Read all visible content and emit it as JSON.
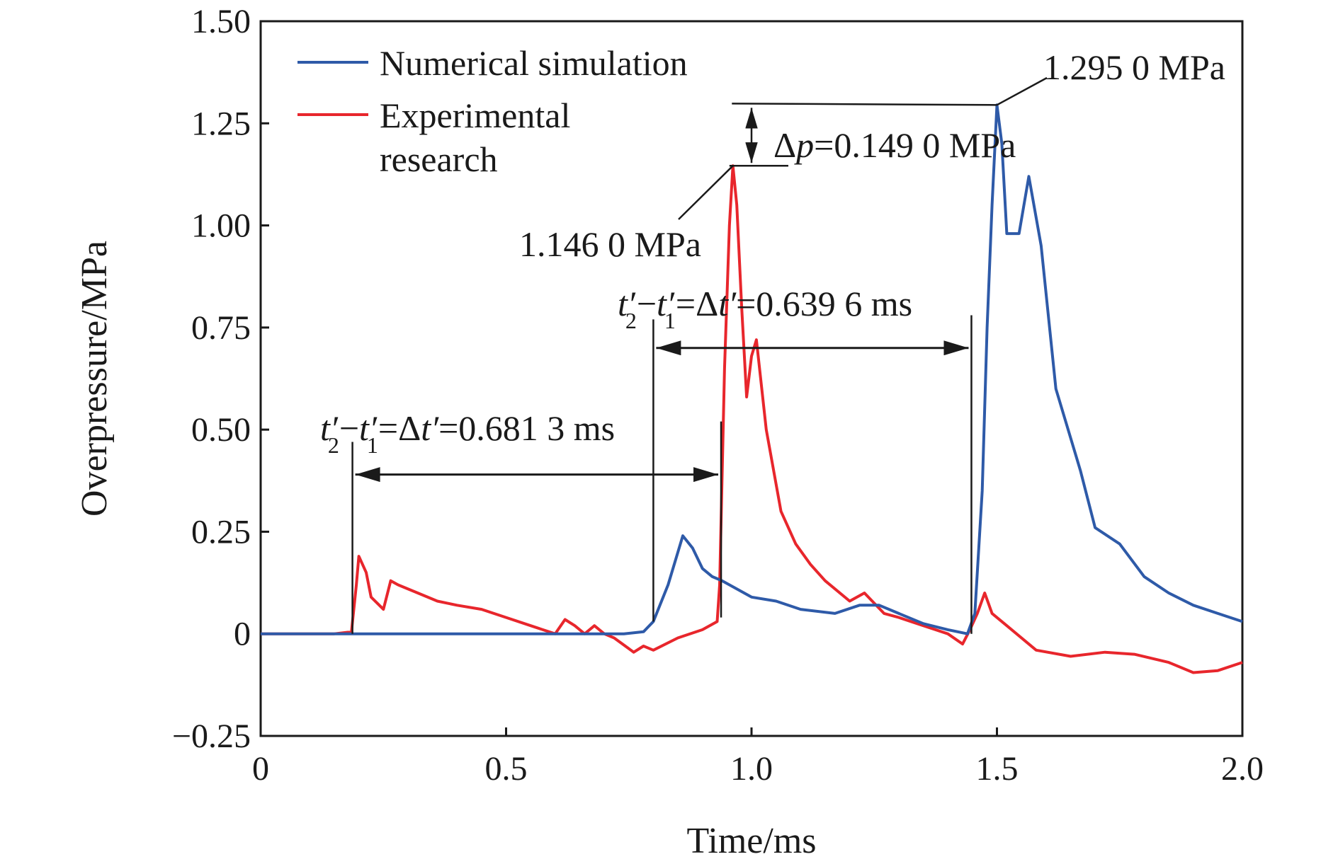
{
  "chart_data": {
    "type": "line",
    "xlabel": "Time/ms",
    "ylabel": "Overpressure/MPa",
    "xlim": [
      0,
      2.0
    ],
    "ylim": [
      -0.25,
      1.5
    ],
    "x_ticks": [
      "0",
      "0.5",
      "1.0",
      "1.5",
      "2.0"
    ],
    "x_tick_values": [
      0,
      0.5,
      1.0,
      1.5,
      2.0
    ],
    "y_ticks": [
      "1.50",
      "1.25",
      "1.00",
      "0.75",
      "0.50",
      "0.25",
      "0",
      "−0.25"
    ],
    "y_tick_values": [
      1.5,
      1.25,
      1.0,
      0.75,
      0.5,
      0.25,
      0,
      -0.25
    ],
    "grid": false,
    "legend_position": "top-left",
    "series": [
      {
        "name": "Numerical simulation",
        "color": "#2e5aa8",
        "x": [
          0,
          0.2,
          0.4,
          0.6,
          0.74,
          0.78,
          0.8,
          0.83,
          0.86,
          0.88,
          0.9,
          0.92,
          0.94,
          0.97,
          1.0,
          1.05,
          1.1,
          1.17,
          1.22,
          1.26,
          1.3,
          1.35,
          1.4,
          1.44,
          1.455,
          1.47,
          1.48,
          1.49,
          1.5,
          1.51,
          1.52,
          1.545,
          1.565,
          1.59,
          1.62,
          1.67,
          1.7,
          1.75,
          1.8,
          1.85,
          1.9,
          1.95,
          2.0
        ],
        "y": [
          0,
          0,
          0,
          0,
          0,
          0.005,
          0.03,
          0.12,
          0.24,
          0.21,
          0.16,
          0.14,
          0.13,
          0.11,
          0.09,
          0.08,
          0.06,
          0.05,
          0.07,
          0.07,
          0.05,
          0.025,
          0.01,
          0.0,
          0.05,
          0.35,
          0.75,
          1.05,
          1.295,
          1.2,
          0.98,
          0.98,
          1.12,
          0.95,
          0.6,
          0.4,
          0.26,
          0.22,
          0.14,
          0.1,
          0.07,
          0.05,
          0.03
        ]
      },
      {
        "name": "Experimental research",
        "color": "#e8262c",
        "x": [
          0,
          0.05,
          0.1,
          0.15,
          0.185,
          0.195,
          0.2,
          0.215,
          0.225,
          0.25,
          0.265,
          0.28,
          0.32,
          0.36,
          0.4,
          0.45,
          0.5,
          0.55,
          0.6,
          0.62,
          0.64,
          0.66,
          0.68,
          0.7,
          0.72,
          0.76,
          0.78,
          0.8,
          0.85,
          0.9,
          0.93,
          0.935,
          0.945,
          0.955,
          0.962,
          0.97,
          0.98,
          0.99,
          1.0,
          1.01,
          1.03,
          1.06,
          1.09,
          1.12,
          1.15,
          1.2,
          1.23,
          1.27,
          1.3,
          1.35,
          1.4,
          1.43,
          1.445,
          1.46,
          1.475,
          1.49,
          1.52,
          1.58,
          1.65,
          1.72,
          1.78,
          1.85,
          1.9,
          1.95,
          2.0
        ],
        "y": [
          0,
          0,
          0,
          0,
          0.005,
          0.12,
          0.19,
          0.15,
          0.09,
          0.06,
          0.13,
          0.12,
          0.1,
          0.08,
          0.07,
          0.06,
          0.04,
          0.02,
          0.0,
          0.035,
          0.02,
          0.0,
          0.02,
          0.0,
          -0.01,
          -0.045,
          -0.03,
          -0.04,
          -0.01,
          0.01,
          0.03,
          0.12,
          0.65,
          1.0,
          1.146,
          1.05,
          0.8,
          0.58,
          0.68,
          0.72,
          0.5,
          0.3,
          0.22,
          0.17,
          0.13,
          0.08,
          0.1,
          0.05,
          0.04,
          0.02,
          0.0,
          -0.025,
          0.01,
          0.05,
          0.1,
          0.05,
          0.02,
          -0.04,
          -0.055,
          -0.045,
          -0.05,
          -0.07,
          -0.095,
          -0.09,
          -0.07
        ]
      }
    ],
    "annotations": {
      "peak_sim_label": "1.295 0 MPa",
      "peak_exp_label": "1.146 0 MPa",
      "delta_p_symbol": "Δ",
      "delta_p_var": "p",
      "delta_p_value": "=0.149 0 MPa",
      "dt1_value": "=0.681 3 ms",
      "dt2_value": "=0.639 6 ms",
      "dt_t": "t′",
      "dt_sub2": "2",
      "dt_sub1": "1",
      "dt_minus": "−",
      "dt_delta": "=Δ",
      "dt_t_prime": "t′"
    },
    "markers": {
      "dt1_left_x": 0.187,
      "dt1_right_x": 0.938,
      "dt2_left_x": 0.8,
      "dt2_right_x": 1.448,
      "dt1_arrow_y": 0.39,
      "dt2_arrow_y": 0.7,
      "dt1_line_top_y": 0.47,
      "dt2_line_top_y": 0.77,
      "dp_upper_y": 1.295,
      "dp_lower_y": 1.146,
      "dp_arrow_x": 1.0
    }
  }
}
